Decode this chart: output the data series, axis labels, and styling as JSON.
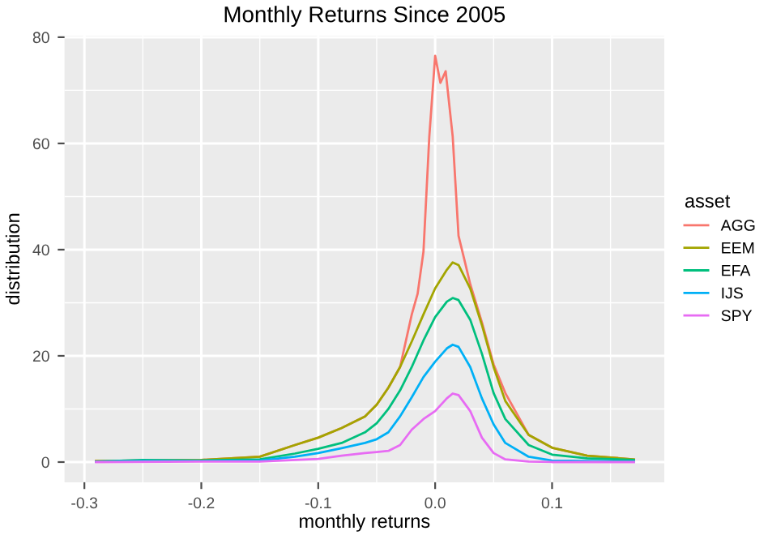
{
  "chart_data": {
    "type": "line",
    "title": "Monthly Returns Since 2005",
    "xlabel": "monthly returns",
    "ylabel": "distribution",
    "legend_title": "asset",
    "legend": "right",
    "grid": true,
    "marker": "none",
    "line_style": "solid",
    "xlim": [
      -0.317,
      0.196
    ],
    "ylim": [
      -3.8,
      80.3
    ],
    "xticks": [
      -0.3,
      {
        "value": -0.25,
        "label": null
      },
      -0.2,
      {
        "value": -0.15,
        "label": null
      },
      -0.1,
      {
        "value": -0.05,
        "label": null
      },
      {
        "value": 0,
        "label": "0.0"
      },
      {
        "value": 0.05,
        "label": null
      },
      0.1,
      {
        "value": 0.15,
        "label": null
      }
    ],
    "yticks": [
      0,
      {
        "value": 10,
        "label": null
      },
      20,
      {
        "value": 30,
        "label": null
      },
      40,
      {
        "value": 50,
        "label": null
      },
      60,
      {
        "value": 70,
        "label": null
      },
      80
    ],
    "series": [
      {
        "name": "AGG",
        "color": "#F8766D",
        "x": [
          -0.29,
          -0.25,
          -0.2,
          -0.15,
          -0.12,
          -0.1,
          -0.08,
          -0.06,
          -0.05,
          -0.04,
          -0.03,
          -0.02,
          -0.015,
          -0.01,
          -0.005,
          0,
          0.0045,
          0.009,
          0.015,
          0.02,
          0.025,
          0.03,
          0.04,
          0.05,
          0.06,
          0.08,
          0.1,
          0.13,
          0.17
        ],
        "values": [
          0.2,
          0.3,
          0.4,
          1,
          3.2,
          4.6,
          6.4,
          8.6,
          10.8,
          14,
          17.9,
          27.8,
          31.7,
          39.6,
          61.3,
          76.5,
          71.4,
          73.6,
          61.3,
          42.6,
          38.1,
          33.5,
          26.3,
          18.4,
          13,
          5.1,
          2.7,
          1.2,
          0.5
        ]
      },
      {
        "name": "EEM",
        "color": "#A3A500",
        "x": [
          -0.29,
          -0.25,
          -0.2,
          -0.15,
          -0.12,
          -0.1,
          -0.08,
          -0.06,
          -0.05,
          -0.04,
          -0.03,
          -0.02,
          -0.01,
          0,
          0.01,
          0.015,
          0.02,
          0.03,
          0.04,
          0.05,
          0.06,
          0.08,
          0.1,
          0.13,
          0.17
        ],
        "values": [
          0.2,
          0.3,
          0.4,
          1,
          3.2,
          4.6,
          6.4,
          8.6,
          10.8,
          14,
          17.9,
          22.7,
          27.8,
          32.7,
          36.2,
          37.6,
          37.1,
          32.7,
          25.8,
          17.9,
          11.5,
          5.1,
          2.7,
          1.2,
          0.5
        ]
      },
      {
        "name": "EFA",
        "color": "#00BF7D",
        "x": [
          -0.29,
          -0.25,
          -0.2,
          -0.15,
          -0.12,
          -0.1,
          -0.08,
          -0.06,
          -0.05,
          -0.04,
          -0.03,
          -0.02,
          -0.01,
          0,
          0.01,
          0.015,
          0.02,
          0.03,
          0.04,
          0.05,
          0.06,
          0.08,
          0.1,
          0.13,
          0.17
        ],
        "values": [
          0.1,
          0.4,
          0.3,
          0.5,
          1.6,
          2.5,
          3.6,
          5.6,
          7.3,
          10,
          13.5,
          17.9,
          22.9,
          27.3,
          30.2,
          30.9,
          30.5,
          26.8,
          20.4,
          13,
          8.1,
          3.2,
          1.4,
          0.7,
          0.4
        ]
      },
      {
        "name": "IJS",
        "color": "#00B0F6",
        "x": [
          -0.29,
          -0.25,
          -0.2,
          -0.15,
          -0.12,
          -0.1,
          -0.08,
          -0.06,
          -0.05,
          -0.04,
          -0.03,
          -0.02,
          -0.01,
          0,
          0.01,
          0.015,
          0.02,
          0.03,
          0.04,
          0.05,
          0.06,
          0.08,
          0.1,
          0.13,
          0.17
        ],
        "values": [
          0.1,
          0.2,
          0.2,
          0.3,
          1,
          1.7,
          2.6,
          3.6,
          4.3,
          5.6,
          8.6,
          12.2,
          16,
          18.9,
          21.4,
          22.1,
          21.7,
          17.9,
          12,
          7.1,
          3.6,
          1,
          0.3,
          0.2,
          0.1
        ]
      },
      {
        "name": "SPY",
        "color": "#E76BF3",
        "x": [
          -0.29,
          -0.2,
          -0.15,
          -0.1,
          -0.08,
          -0.06,
          -0.05,
          -0.04,
          -0.03,
          -0.02,
          -0.01,
          0,
          0.01,
          0.015,
          0.02,
          0.03,
          0.04,
          0.05,
          0.06,
          0.08,
          0.1,
          0.17
        ],
        "values": [
          0,
          0.1,
          0.1,
          0.6,
          1.2,
          1.7,
          1.9,
          2.1,
          3.2,
          6.1,
          8.1,
          9.6,
          12,
          12.9,
          12.6,
          9.6,
          4.6,
          1.7,
          0.5,
          0.1,
          0,
          0
        ]
      }
    ]
  }
}
